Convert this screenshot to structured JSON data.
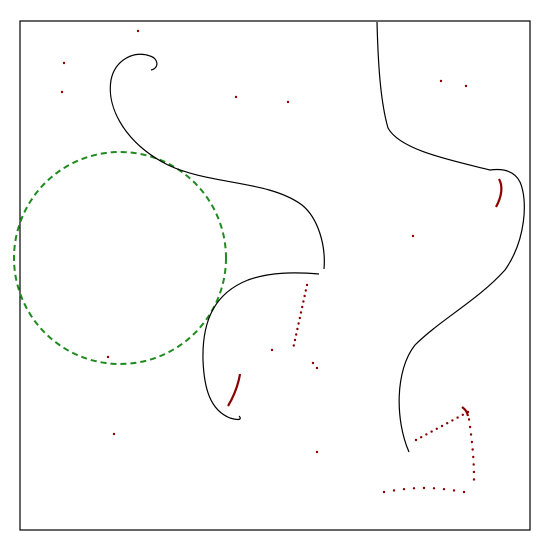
{
  "colors": {
    "background": "#ffffff",
    "frame": "#000000",
    "curve": "#000000",
    "dots": "#8b0000",
    "circle": "#008000"
  },
  "elements": {
    "frame": "plot-frame",
    "curves": [
      "curve-spiral-left",
      "curve-hook-lower",
      "curve-right"
    ],
    "circle": "dashed-circle"
  }
}
